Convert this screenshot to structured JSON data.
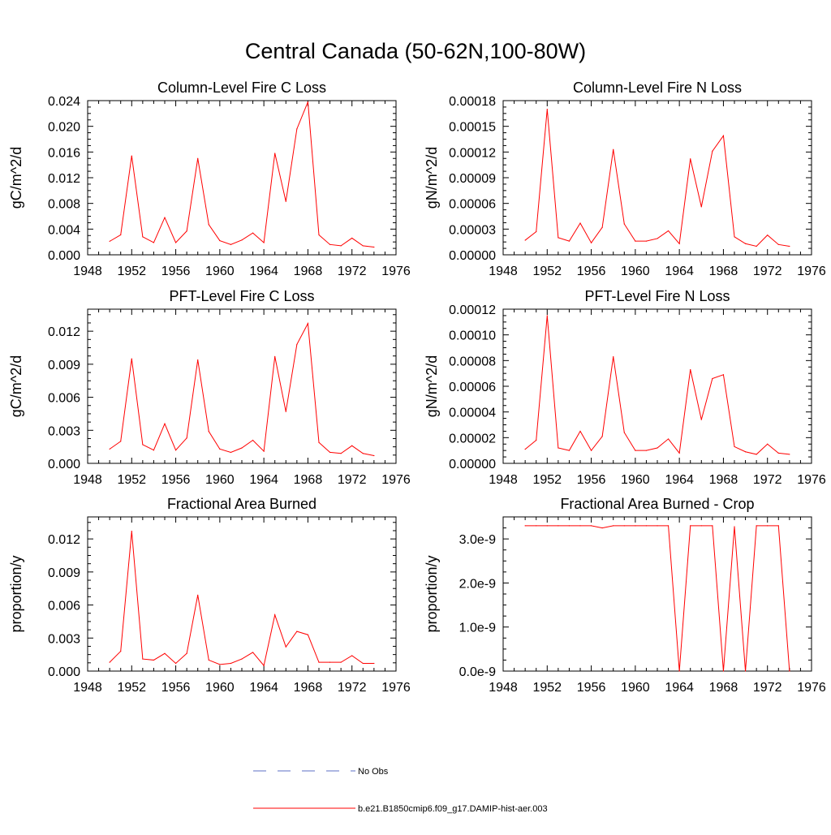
{
  "figure": {
    "title": "Central Canada (50-62N,100-80W)"
  },
  "legend": {
    "entries": [
      {
        "label": "No Obs",
        "style": "dashed",
        "color": "#5b6fc6"
      },
      {
        "label": "b.e21.B1850cmip6.f09_g17.DAMIP-hist-aer.003",
        "style": "solid",
        "color": "#ff0000"
      }
    ]
  },
  "series_color": "#ff0000",
  "chart_data": [
    {
      "type": "line",
      "title": "Column-Level Fire C Loss",
      "ylabel": "gC/m^2/d",
      "xlim": [
        1948,
        1976
      ],
      "xticks": [
        1948,
        1952,
        1956,
        1960,
        1964,
        1968,
        1972,
        1976
      ],
      "ylim": [
        0,
        0.024
      ],
      "yticks": [
        0,
        0.004,
        0.008,
        0.012,
        0.016,
        0.02,
        0.024
      ],
      "ytick_labels": [
        "0.000",
        "0.004",
        "0.008",
        "0.012",
        "0.016",
        "0.020",
        "0.024"
      ],
      "x": [
        1950,
        1951,
        1952,
        1953,
        1954,
        1955,
        1956,
        1957,
        1958,
        1959,
        1960,
        1961,
        1962,
        1963,
        1964,
        1965,
        1966,
        1967,
        1968,
        1969,
        1970,
        1971,
        1972,
        1973,
        1974
      ],
      "series": [
        {
          "values": [
            0.0021,
            0.0031,
            0.0154,
            0.0028,
            0.0019,
            0.0058,
            0.0019,
            0.0037,
            0.015,
            0.0047,
            0.0022,
            0.0016,
            0.0023,
            0.0034,
            0.0019,
            0.0158,
            0.0083,
            0.0196,
            0.0238,
            0.0031,
            0.0016,
            0.0014,
            0.0026,
            0.0014,
            0.0012
          ]
        }
      ]
    },
    {
      "type": "line",
      "title": "Column-Level Fire N Loss",
      "ylabel": "gN/m^2/d",
      "xlim": [
        1948,
        1976
      ],
      "xticks": [
        1948,
        1952,
        1956,
        1960,
        1964,
        1968,
        1972,
        1976
      ],
      "ylim": [
        0,
        0.00018
      ],
      "yticks": [
        0,
        3e-05,
        6e-05,
        9e-05,
        0.00012,
        0.00015,
        0.00018
      ],
      "ytick_labels": [
        "0.00000",
        "0.00003",
        "0.00006",
        "0.00009",
        "0.00012",
        "0.00015",
        "0.00018"
      ],
      "x": [
        1950,
        1951,
        1952,
        1953,
        1954,
        1955,
        1956,
        1957,
        1958,
        1959,
        1960,
        1961,
        1962,
        1963,
        1964,
        1965,
        1966,
        1967,
        1968,
        1969,
        1970,
        1971,
        1972,
        1973,
        1974
      ],
      "series": [
        {
          "values": [
            1.7e-05,
            2.7e-05,
            0.00017,
            2e-05,
            1.6e-05,
            3.7e-05,
            1.4e-05,
            3.2e-05,
            0.000123,
            3.6e-05,
            1.6e-05,
            1.6e-05,
            1.9e-05,
            2.8e-05,
            1.3e-05,
            0.000112,
            5.6e-05,
            0.000121,
            0.000139,
            2.1e-05,
            1.3e-05,
            1e-05,
            2.3e-05,
            1.2e-05,
            1e-05
          ]
        }
      ]
    },
    {
      "type": "line",
      "title": "PFT-Level Fire C Loss",
      "ylabel": "gC/m^2/d",
      "xlim": [
        1948,
        1976
      ],
      "xticks": [
        1948,
        1952,
        1956,
        1960,
        1964,
        1968,
        1972,
        1976
      ],
      "ylim": [
        0,
        0.014
      ],
      "yticks": [
        0,
        0.003,
        0.006,
        0.009,
        0.012
      ],
      "ytick_labels": [
        "0.000",
        "0.003",
        "0.006",
        "0.009",
        "0.012"
      ],
      "x": [
        1950,
        1951,
        1952,
        1953,
        1954,
        1955,
        1956,
        1957,
        1958,
        1959,
        1960,
        1961,
        1962,
        1963,
        1964,
        1965,
        1966,
        1967,
        1968,
        1969,
        1970,
        1971,
        1972,
        1973,
        1974
      ],
      "series": [
        {
          "values": [
            0.0013,
            0.002,
            0.0095,
            0.0017,
            0.0012,
            0.0036,
            0.0012,
            0.0023,
            0.0094,
            0.0029,
            0.0013,
            0.001,
            0.0014,
            0.0021,
            0.0011,
            0.0097,
            0.0047,
            0.0108,
            0.0127,
            0.0019,
            0.001,
            0.0009,
            0.0016,
            0.0009,
            0.0007
          ]
        }
      ]
    },
    {
      "type": "line",
      "title": "PFT-Level Fire N Loss",
      "ylabel": "gN/m^2/d",
      "xlim": [
        1948,
        1976
      ],
      "xticks": [
        1948,
        1952,
        1956,
        1960,
        1964,
        1968,
        1972,
        1976
      ],
      "ylim": [
        0,
        0.00012
      ],
      "yticks": [
        0,
        2e-05,
        4e-05,
        6e-05,
        8e-05,
        0.0001,
        0.00012
      ],
      "ytick_labels": [
        "0.00000",
        "0.00002",
        "0.00004",
        "0.00006",
        "0.00008",
        "0.00010",
        "0.00012"
      ],
      "x": [
        1950,
        1951,
        1952,
        1953,
        1954,
        1955,
        1956,
        1957,
        1958,
        1959,
        1960,
        1961,
        1962,
        1963,
        1964,
        1965,
        1966,
        1967,
        1968,
        1969,
        1970,
        1971,
        1972,
        1973,
        1974
      ],
      "series": [
        {
          "values": [
            1.1e-05,
            1.8e-05,
            0.000115,
            1.2e-05,
            1e-05,
            2.5e-05,
            1e-05,
            2.1e-05,
            8.3e-05,
            2.4e-05,
            1e-05,
            1e-05,
            1.2e-05,
            1.9e-05,
            8e-06,
            7.3e-05,
            3.4e-05,
            6.6e-05,
            6.9e-05,
            1.3e-05,
            9e-06,
            7e-06,
            1.5e-05,
            8e-06,
            7e-06
          ]
        }
      ]
    },
    {
      "type": "line",
      "title": "Fractional Area Burned",
      "ylabel": "proportion/y",
      "xlim": [
        1948,
        1976
      ],
      "xticks": [
        1948,
        1952,
        1956,
        1960,
        1964,
        1968,
        1972,
        1976
      ],
      "ylim": [
        0,
        0.014
      ],
      "yticks": [
        0,
        0.003,
        0.006,
        0.009,
        0.012
      ],
      "ytick_labels": [
        "0.000",
        "0.003",
        "0.006",
        "0.009",
        "0.012"
      ],
      "x": [
        1950,
        1951,
        1952,
        1953,
        1954,
        1955,
        1956,
        1957,
        1958,
        1959,
        1960,
        1961,
        1962,
        1963,
        1964,
        1965,
        1966,
        1967,
        1968,
        1969,
        1970,
        1971,
        1972,
        1973,
        1974
      ],
      "series": [
        {
          "values": [
            0.0008,
            0.0018,
            0.0127,
            0.0011,
            0.001,
            0.0016,
            0.0007,
            0.0016,
            0.0069,
            0.001,
            0.0006,
            0.0007,
            0.0011,
            0.0017,
            0.0005,
            0.0051,
            0.0022,
            0.0036,
            0.0033,
            0.0008,
            0.0008,
            0.0008,
            0.0014,
            0.0007,
            0.0007
          ]
        }
      ]
    },
    {
      "type": "line",
      "title": "Fractional Area Burned - Crop",
      "ylabel": "proportion/y",
      "xlim": [
        1948,
        1976
      ],
      "xticks": [
        1948,
        1952,
        1956,
        1960,
        1964,
        1968,
        1972,
        1976
      ],
      "ylim": [
        0,
        3.5e-09
      ],
      "yticks": [
        0,
        1e-09,
        2e-09,
        3e-09
      ],
      "ytick_labels": [
        "0.0e-9",
        "1.0e-9",
        "2.0e-9",
        "3.0e-9"
      ],
      "x": [
        1950,
        1951,
        1952,
        1953,
        1954,
        1955,
        1956,
        1957,
        1958,
        1959,
        1960,
        1961,
        1962,
        1963,
        1964,
        1965,
        1966,
        1967,
        1968,
        1969,
        1970,
        1971,
        1972,
        1973,
        1974
      ],
      "series": [
        {
          "values": [
            3.3e-09,
            3.3e-09,
            3.3e-09,
            3.3e-09,
            3.3e-09,
            3.3e-09,
            3.3e-09,
            3.25e-09,
            3.3e-09,
            3.3e-09,
            3.3e-09,
            3.3e-09,
            3.3e-09,
            3.3e-09,
            0,
            3.3e-09,
            3.3e-09,
            3.3e-09,
            0,
            3.28e-09,
            0,
            3.3e-09,
            3.3e-09,
            3.3e-09,
            0
          ]
        }
      ]
    }
  ]
}
